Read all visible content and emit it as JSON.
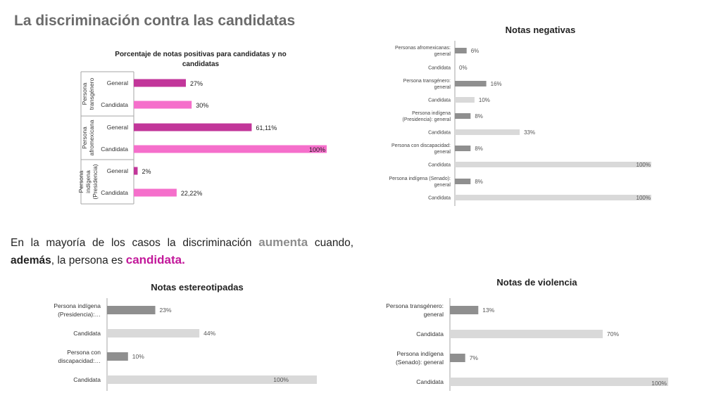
{
  "page": {
    "title": "La discriminación contra las candidatas",
    "paragraph": {
      "p1": "En la mayoría de los casos la discriminación",
      "w1": "aumenta",
      "p2": "cuando,",
      "w2": "además",
      "p3": ", la persona es",
      "w3": "candidata."
    }
  },
  "colors": {
    "magenta": "#c2369a",
    "pink": "#f56fcb",
    "dark_grey": "#8f8f8f",
    "light_grey": "#d9d9d9",
    "axis": "#a6a6a6"
  },
  "chart_data": [
    {
      "type": "bar",
      "orientation": "horizontal",
      "title": "Porcentaje de notas positivas para candidatas y no candidatas",
      "groups": [
        "Persona transgénero",
        "Persona afromexicana",
        "Persona indígena (Presidencia)"
      ],
      "categories": [
        "General",
        "Candidata",
        "General",
        "Candidata",
        "General",
        "Candidata"
      ],
      "values": [
        27,
        30,
        61.11,
        100,
        2,
        22.22
      ],
      "labels": [
        "27%",
        "30%",
        "61,11%",
        "100%",
        "2%",
        "22,22%"
      ],
      "xlim": [
        0,
        100
      ]
    },
    {
      "type": "bar",
      "orientation": "horizontal",
      "title": "Notas negativas",
      "categories": [
        "Personas afromexicanas: general",
        "Candidata",
        "Persona transgénero: general",
        "Candidata",
        "Persona indígena (Presidencia): general",
        "Candidata",
        "Persona con discapacidad: general",
        "Candidata",
        "Persona indígena (Senado): general",
        "Candidata"
      ],
      "values": [
        6,
        0,
        16,
        10,
        8,
        33,
        8,
        100,
        8,
        100
      ],
      "labels": [
        "6%",
        "0%",
        "16%",
        "10%",
        "8%",
        "33%",
        "8%",
        "100%",
        "8%",
        "100%"
      ],
      "xlim": [
        0,
        100
      ]
    },
    {
      "type": "bar",
      "orientation": "horizontal",
      "title": "Notas estereotipadas",
      "categories": [
        "Persona indígena (Presidencia):…",
        "Candidata",
        "Persona con discapacidad:…",
        "Candidata"
      ],
      "values": [
        23,
        44,
        10,
        100
      ],
      "labels": [
        "23%",
        "44%",
        "10%",
        "100%"
      ],
      "xlim": [
        0,
        100
      ]
    },
    {
      "type": "bar",
      "orientation": "horizontal",
      "title": "Notas de violencia",
      "categories": [
        "Persona transgénero: general",
        "Candidata",
        "Persona indígena (Senado): general",
        "Candidata"
      ],
      "values": [
        13,
        70,
        7,
        100
      ],
      "labels": [
        "13%",
        "70%",
        "7%",
        "100%"
      ],
      "xlim": [
        0,
        100
      ]
    }
  ]
}
